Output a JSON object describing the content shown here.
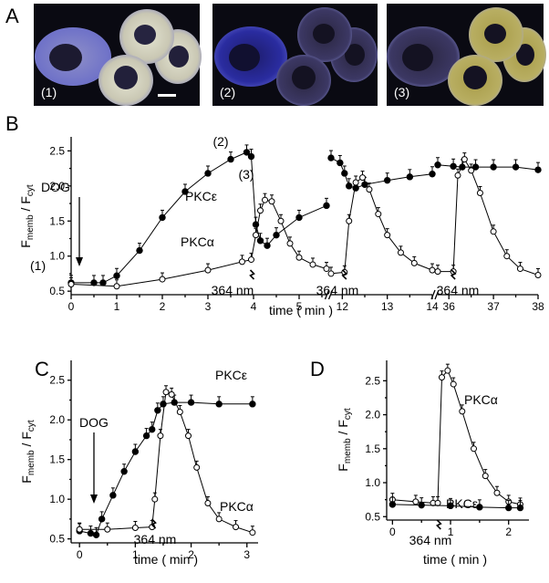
{
  "figure": {
    "panel_labels": [
      "A",
      "B",
      "C",
      "D"
    ],
    "image_labels": [
      "(1)",
      "(2)",
      "(3)"
    ],
    "cell_colors": {
      "background": "#0a0a12",
      "membrane": "#6f72c8",
      "cytosol_high": "#dcdcc8",
      "cytosol_low": "#34305a",
      "yellow": "#b7ad5c"
    }
  },
  "chart_data": [
    {
      "panel": "B",
      "type": "line",
      "xlabel": "time  ( min )",
      "ylabel_main": "F",
      "ylabel_sub1": "memb",
      "ylabel_mid": " / F",
      "ylabel_sub2": "cyt",
      "ylim": [
        0.45,
        2.7
      ],
      "yticks": [
        "0.5",
        "1.0",
        "1.5",
        "2.0",
        "2.5"
      ],
      "segments": [
        {
          "xlim": [
            0,
            5.6
          ],
          "xticks": [
            "0",
            "1",
            "2",
            "3",
            "4",
            "5"
          ]
        },
        {
          "xlim": [
            11.75,
            14
          ],
          "xticks": [
            "12",
            "13",
            "14"
          ]
        },
        {
          "xlim": [
            35.75,
            38
          ],
          "xticks": [
            "36",
            "37",
            "38"
          ]
        }
      ],
      "series": [
        {
          "name": "PKCε",
          "marker": "filled",
          "values": [
            [
              [
                0,
                0.62
              ],
              [
                0.5,
                0.62
              ],
              [
                0.7,
                0.62
              ],
              [
                1,
                0.72
              ],
              [
                1.5,
                1.08
              ],
              [
                2,
                1.55
              ],
              [
                2.5,
                1.92
              ],
              [
                3,
                2.18
              ],
              [
                3.5,
                2.38
              ],
              [
                3.85,
                2.48
              ],
              [
                3.95,
                2.42
              ],
              [
                4.05,
                1.45
              ],
              [
                4.15,
                1.22
              ],
              [
                4.3,
                1.15
              ],
              [
                4.5,
                1.3
              ],
              [
                5,
                1.55
              ],
              [
                5.6,
                1.72
              ]
            ],
            [
              [
                11.75,
                2.4
              ],
              [
                11.95,
                2.33
              ],
              [
                12.05,
                2.18
              ],
              [
                12.15,
                2.0
              ],
              [
                12.3,
                1.97
              ],
              [
                12.5,
                2.02
              ],
              [
                13,
                2.08
              ],
              [
                13.5,
                2.13
              ],
              [
                14,
                2.17
              ]
            ],
            [
              [
                35.75,
                2.3
              ],
              [
                36.1,
                2.28
              ],
              [
                36.3,
                2.27
              ],
              [
                36.6,
                2.27
              ],
              [
                37,
                2.27
              ],
              [
                37.5,
                2.27
              ],
              [
                38,
                2.23
              ]
            ]
          ]
        },
        {
          "name": "PKCα",
          "marker": "open",
          "values": [
            [
              [
                0,
                0.6
              ],
              [
                1,
                0.57
              ],
              [
                2,
                0.67
              ],
              [
                3,
                0.8
              ],
              [
                3.75,
                0.92
              ],
              [
                3.95,
                0.95
              ],
              [
                4.05,
                1.3
              ],
              [
                4.15,
                1.65
              ],
              [
                4.25,
                1.8
              ],
              [
                4.4,
                1.78
              ],
              [
                4.6,
                1.5
              ],
              [
                4.8,
                1.18
              ],
              [
                5,
                0.98
              ],
              [
                5.3,
                0.88
              ],
              [
                5.6,
                0.82
              ]
            ],
            [
              [
                11.75,
                0.75
              ],
              [
                12.05,
                0.77
              ],
              [
                12.15,
                1.5
              ],
              [
                12.3,
                2.05
              ],
              [
                12.45,
                2.12
              ],
              [
                12.6,
                1.95
              ],
              [
                12.8,
                1.6
              ],
              [
                13,
                1.3
              ],
              [
                13.3,
                1.05
              ],
              [
                13.6,
                0.9
              ],
              [
                14,
                0.8
              ]
            ],
            [
              [
                35.75,
                0.78
              ],
              [
                36.1,
                0.78
              ],
              [
                36.2,
                2.15
              ],
              [
                36.35,
                2.38
              ],
              [
                36.5,
                2.22
              ],
              [
                36.7,
                1.9
              ],
              [
                37,
                1.35
              ],
              [
                37.3,
                1.0
              ],
              [
                37.6,
                0.82
              ],
              [
                38,
                0.73
              ]
            ]
          ]
        }
      ],
      "annotations": {
        "dog": "DOG",
        "uv": "364 nm",
        "state1": "(1)",
        "state2": "(2)",
        "state3": "(3)",
        "pkce": "PKCε",
        "pkca": "PKCα"
      }
    },
    {
      "panel": "C",
      "type": "line",
      "xlabel": "time  ( min )",
      "ylabel_main": "F",
      "ylabel_sub1": "memb",
      "ylabel_mid": " / F",
      "ylabel_sub2": "cyt",
      "xlim": [
        -0.15,
        3.2
      ],
      "ylim": [
        0.45,
        2.75
      ],
      "xticks": [
        "0",
        "1",
        "2",
        "3"
      ],
      "yticks": [
        "0.5",
        "1.0",
        "1.5",
        "2.0",
        "2.5"
      ],
      "series": [
        {
          "name": "PKCε",
          "marker": "filled",
          "values": [
            [
              0,
              0.6
            ],
            [
              0.2,
              0.57
            ],
            [
              0.3,
              0.55
            ],
            [
              0.4,
              0.75
            ],
            [
              0.6,
              1.05
            ],
            [
              0.8,
              1.35
            ],
            [
              1,
              1.6
            ],
            [
              1.2,
              1.8
            ],
            [
              1.3,
              1.88
            ],
            [
              1.4,
              2.12
            ],
            [
              1.5,
              2.2
            ],
            [
              1.7,
              2.22
            ],
            [
              2,
              2.22
            ],
            [
              2.5,
              2.2
            ],
            [
              3.1,
              2.2
            ]
          ]
        },
        {
          "name": "PKCα",
          "marker": "open",
          "values": [
            [
              0,
              0.62
            ],
            [
              0.5,
              0.62
            ],
            [
              1.0,
              0.64
            ],
            [
              1.3,
              0.65
            ],
            [
              1.35,
              1.0
            ],
            [
              1.45,
              1.8
            ],
            [
              1.55,
              2.35
            ],
            [
              1.65,
              2.32
            ],
            [
              1.8,
              2.1
            ],
            [
              1.95,
              1.8
            ],
            [
              2.1,
              1.4
            ],
            [
              2.3,
              0.95
            ],
            [
              2.5,
              0.75
            ],
            [
              2.8,
              0.65
            ],
            [
              3.1,
              0.58
            ]
          ]
        }
      ],
      "annotations": {
        "dog": "DOG",
        "uv": "364 nm",
        "pkce": "PKCε",
        "pkca": "PKCα"
      }
    },
    {
      "panel": "D",
      "type": "line",
      "xlabel": "time  ( min )",
      "ylabel_main": "F",
      "ylabel_sub1": "memb",
      "ylabel_mid": " / F",
      "ylabel_sub2": "cyt",
      "xlim": [
        -0.1,
        2.35
      ],
      "ylim": [
        0.45,
        2.8
      ],
      "xticks": [
        "0",
        "1",
        "2"
      ],
      "yticks": [
        "0.5",
        "1.0",
        "1.5",
        "2.0",
        "2.5"
      ],
      "series": [
        {
          "name": "PKCα",
          "marker": "open",
          "values": [
            [
              0,
              0.75
            ],
            [
              0.4,
              0.72
            ],
            [
              0.7,
              0.7
            ],
            [
              0.78,
              0.7
            ],
            [
              0.85,
              2.55
            ],
            [
              0.95,
              2.65
            ],
            [
              1.05,
              2.45
            ],
            [
              1.2,
              2.05
            ],
            [
              1.4,
              1.5
            ],
            [
              1.6,
              1.1
            ],
            [
              1.8,
              0.85
            ],
            [
              2.0,
              0.72
            ],
            [
              2.2,
              0.68
            ]
          ]
        },
        {
          "name": "PKCε",
          "marker": "filled",
          "values": [
            [
              0,
              0.68
            ],
            [
              0.5,
              0.67
            ],
            [
              1,
              0.66
            ],
            [
              1.5,
              0.64
            ],
            [
              2,
              0.63
            ],
            [
              2.2,
              0.63
            ]
          ]
        }
      ],
      "annotations": {
        "uv": "364 nm",
        "pkca": "PKCα",
        "pkce": "PKCε"
      }
    }
  ]
}
